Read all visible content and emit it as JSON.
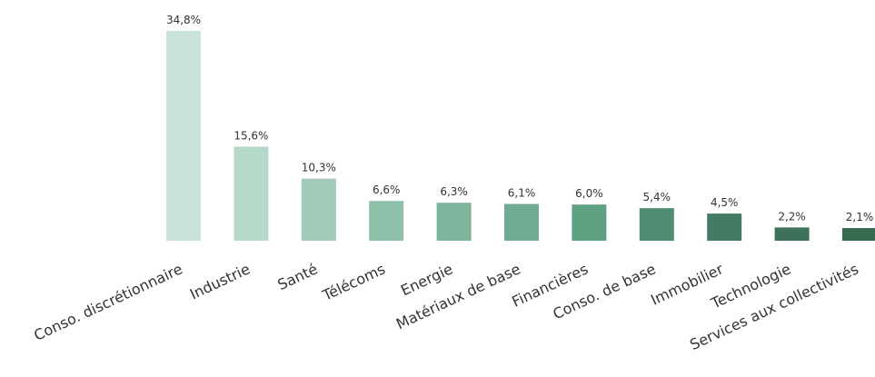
{
  "chart_data": {
    "type": "bar",
    "categories": [
      "Conso. discrétionnaire",
      "Industrie",
      "Santé",
      "Télécoms",
      "Energie",
      "Matériaux de base",
      "Financières",
      "Conso. de base",
      "Immobilier",
      "Technologie",
      "Services aux collectivités"
    ],
    "values": [
      34.8,
      15.6,
      10.3,
      6.6,
      6.3,
      6.1,
      6.0,
      5.4,
      4.5,
      2.2,
      2.1
    ],
    "value_labels": [
      "34,8%",
      "15,6%",
      "10,3%",
      "6,6%",
      "6,3%",
      "6,1%",
      "6,0%",
      "5,4%",
      "4,5%",
      "2,2%",
      "2,1%"
    ],
    "colors": [
      "#c9e2da",
      "#b6d8c9",
      "#a1cbb8",
      "#8fc1aa",
      "#7eb69d",
      "#6eab90",
      "#5fa183",
      "#4f8d72",
      "#447b64",
      "#3d7159",
      "#386a51"
    ]
  }
}
